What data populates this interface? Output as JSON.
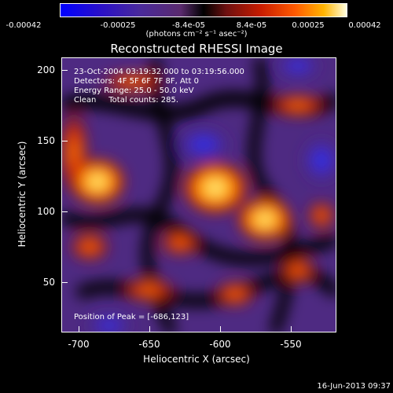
{
  "colorbar": {
    "ticks": [
      "-0.00042",
      "-0.00025",
      "-8.4e-05",
      "8.4e-05",
      "0.00025",
      "0.00042"
    ],
    "units": "(photons cm⁻² s⁻¹ asec⁻²)"
  },
  "title": "Reconstructed RHESSI Image",
  "info": {
    "time": "23-Oct-2004 03:19:32.000 to 03:19:56.000",
    "detectors": "Detectors: 4F 5F 6F 7F 8F, Att 0",
    "energy": "Energy Range: 25.0 - 50.0 keV",
    "clean": "Clean     Total counts: 285.",
    "peak": "Position of Peak = [-686,123]"
  },
  "axes": {
    "xlabel": "Heliocentric X (arcsec)",
    "ylabel": "Heliocentric Y (arcsec)",
    "xticks": [
      "-700",
      "-650",
      "-600",
      "-550"
    ],
    "yticks": [
      "200",
      "150",
      "100",
      "50"
    ]
  },
  "timestamp": "16-Jun-2013 09:37"
}
